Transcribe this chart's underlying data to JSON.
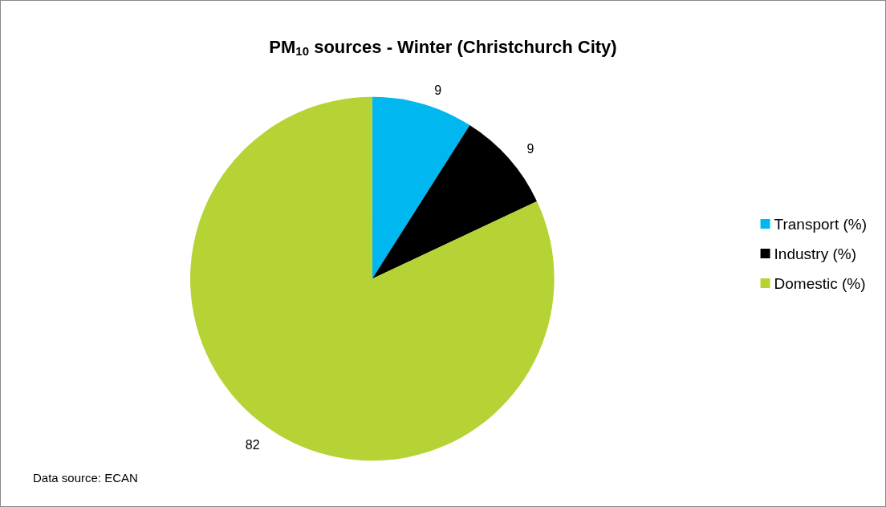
{
  "chart_data": {
    "type": "pie",
    "title": "PM$_{10}$ sources - Winter (Christchurch City)",
    "categories": [
      "Transport (%)",
      "Industry (%)",
      "Domestic (%)"
    ],
    "values": [
      9,
      9,
      82
    ],
    "colors": [
      "#00b7f0",
      "#000000",
      "#b5d334"
    ],
    "data_labels": true,
    "legend": "right",
    "annotations": [
      "Data source: ECAN"
    ]
  }
}
